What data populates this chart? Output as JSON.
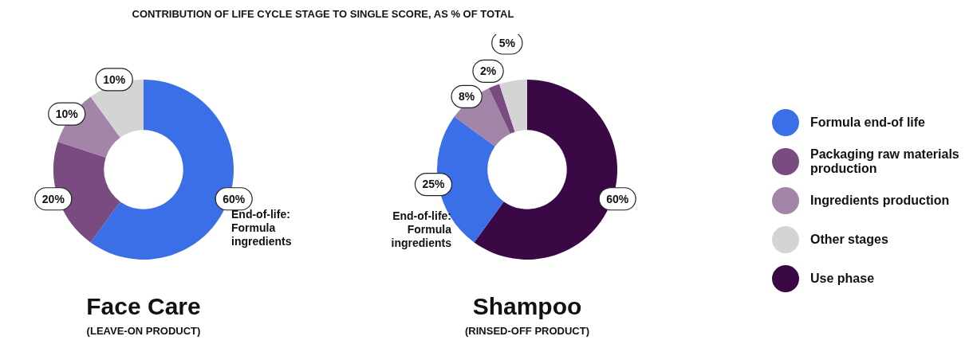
{
  "chart_data": [
    {
      "type": "other",
      "title": "CONTRIBUTION OF LIFE CYCLE STAGE TO SINGLE SCORE, AS % OF TOTAL"
    },
    {
      "type": "donut",
      "title": "Face Care",
      "subtitle": "(LEAVE-ON PRODUCT)",
      "categories": [
        "Formula end-of life",
        "Packaging raw materials production",
        "Ingredients production",
        "Other stages"
      ],
      "values": [
        60,
        20,
        10,
        10
      ],
      "value_labels": [
        "60%",
        "20%",
        "10%",
        "10%"
      ],
      "colors": [
        "#3a6fe8",
        "#7a4b80",
        "#a285a8",
        "#d4d4d4"
      ],
      "annotations": [
        "End-of-life: Formula ingredients"
      ],
      "legend": "right"
    },
    {
      "type": "donut",
      "title": "Shampoo",
      "subtitle": "(RINSED-OFF PRODUCT)",
      "categories": [
        "Use phase",
        null,
        null,
        null,
        null
      ],
      "values": [
        60,
        25,
        8,
        2,
        5
      ],
      "value_labels": [
        "60%",
        "25%",
        "8%",
        "2%",
        "5%"
      ],
      "colors": [
        "#3a0845",
        "#3a6fe8",
        "#a285a8",
        "#7a4b80",
        "#d4d4d4"
      ],
      "annotations": [
        "End-of-life: Formula ingredients"
      ],
      "legend": "right"
    }
  ]
}
